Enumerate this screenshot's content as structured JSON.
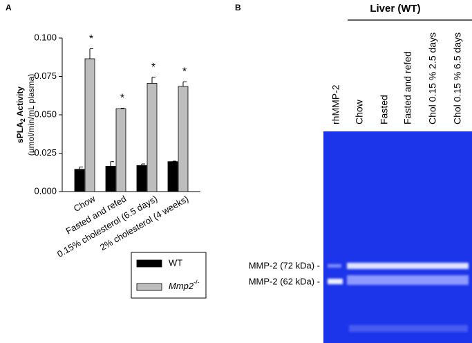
{
  "chart_data": {
    "type": "bar",
    "panel_label": "A",
    "y_label": {
      "main": "sPLA",
      "sub": "2",
      "rest": " Activity"
    },
    "y_unit": "(µmol/min/mL plasma)",
    "categories": [
      "Chow",
      "Fasted and refed",
      "0.15% cholesterol (6.5 days)",
      "2% cholesterol (4 weeks)"
    ],
    "series": [
      {
        "name": "WT",
        "color": "#000000",
        "values": [
          0.0145,
          0.0165,
          0.017,
          0.0195
        ],
        "errors": [
          0.0015,
          0.003,
          0.001,
          0.0003
        ]
      },
      {
        "name": {
          "main": "Mmp2",
          "sup": "-/-"
        },
        "color": "#bdbdbd",
        "values": [
          0.0865,
          0.054,
          0.0705,
          0.0685
        ],
        "errors": [
          0.0065,
          0.0003,
          0.004,
          0.003
        ],
        "annotations": [
          "*",
          "*",
          "*",
          "*"
        ]
      }
    ],
    "ylim": [
      0,
      0.1
    ],
    "yticks": [
      {
        "value": 0,
        "label": "0.000"
      },
      0.025,
      {
        "value": 0.05,
        "label": "0.050"
      },
      0.075,
      {
        "value": 0.1,
        "label": "0.100"
      }
    ]
  },
  "gel": {
    "panel_label": "B",
    "header": "Liver (WT)",
    "lanes": [
      "rhMMP-2",
      "Chow",
      "Fasted",
      "Fasted and refed",
      "Chol 0.15 % 2.5 days",
      "Chol 0.15 % 6.5 days"
    ],
    "bands": [
      "MMP-2 (72 kDa) -",
      "MMP-2 (62 kDa) -"
    ]
  }
}
